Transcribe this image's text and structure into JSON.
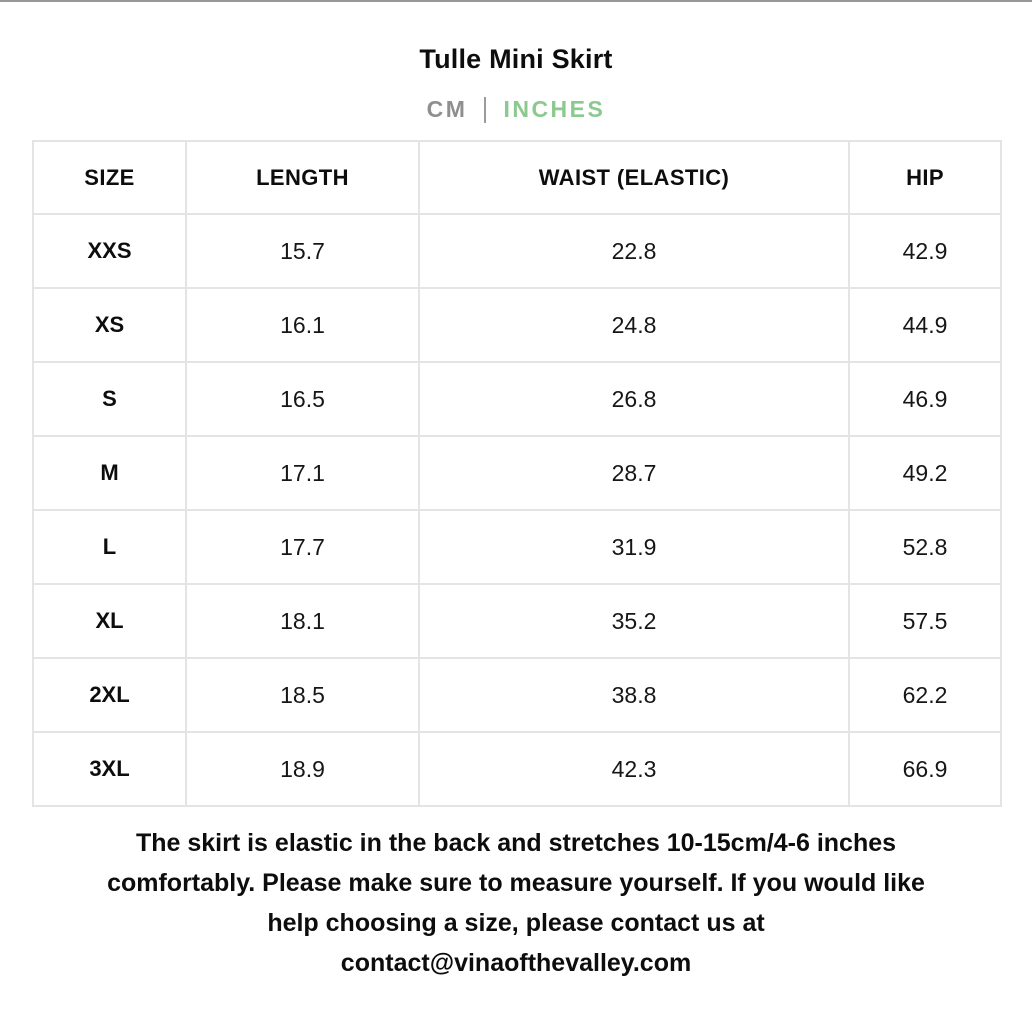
{
  "header": {
    "title": "Tulle Mini Skirt",
    "unit_toggle": {
      "cm_label": "CM",
      "inches_label": "INCHES",
      "selected_unit": "INCHES",
      "inactive_color": "#8f8f8f",
      "active_color": "#8bc98f"
    }
  },
  "table": {
    "columns": [
      "SIZE",
      "LENGTH",
      "WAIST (ELASTIC)",
      "HIP"
    ],
    "rows": [
      {
        "size": "XXS",
        "length": "15.7",
        "waist": "22.8",
        "hip": "42.9"
      },
      {
        "size": "XS",
        "length": "16.1",
        "waist": "24.8",
        "hip": "44.9"
      },
      {
        "size": "S",
        "length": "16.5",
        "waist": "26.8",
        "hip": "46.9"
      },
      {
        "size": "M",
        "length": "17.1",
        "waist": "28.7",
        "hip": "49.2"
      },
      {
        "size": "L",
        "length": "17.7",
        "waist": "31.9",
        "hip": "52.8"
      },
      {
        "size": "XL",
        "length": "18.1",
        "waist": "35.2",
        "hip": "57.5"
      },
      {
        "size": "2XL",
        "length": "18.5",
        "waist": "38.8",
        "hip": "62.2"
      },
      {
        "size": "3XL",
        "length": "18.9",
        "waist": "42.3",
        "hip": "66.9"
      }
    ]
  },
  "footer": {
    "lines": [
      "The skirt is elastic in the back and stretches 10-15cm/4-6 inches",
      "comfortably. Please make sure to measure yourself. If you would like",
      "help choosing a size, please contact us at",
      "contact@vinaofthevalley.com"
    ]
  },
  "colors": {
    "background": "#ffffff",
    "text": "#0d0d0d",
    "table_border": "#e4e4e4",
    "top_rule": "#979797"
  }
}
